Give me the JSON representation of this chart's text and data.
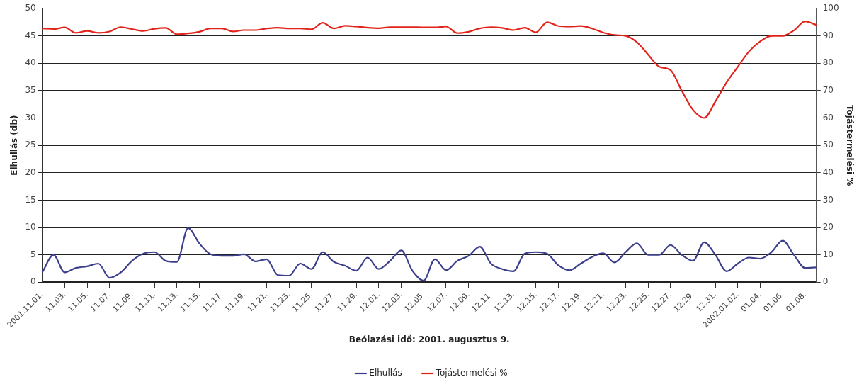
{
  "chart_data": {
    "type": "line",
    "xlabel": "Beólazási idő: 2001. augusztus 9.",
    "ylabel": "Elhullás (db)",
    "y2label": "Tojástermelési %",
    "categories": [
      "2001.11.01.",
      null,
      "11.03.",
      null,
      "11.05.",
      null,
      "11.07.",
      null,
      "11.09.",
      null,
      "11.11.",
      null,
      "11.13.",
      null,
      "11.15.",
      null,
      "11.17.",
      null,
      "11.19.",
      null,
      "11.21.",
      null,
      "11.23.",
      null,
      "11.25.",
      null,
      "11.27.",
      null,
      "11.29.",
      null,
      "12.01.",
      null,
      "12.03.",
      null,
      "12.05.",
      null,
      "12.07.",
      null,
      "12.09.",
      null,
      "12.11.",
      null,
      "12.13.",
      null,
      "12.15.",
      null,
      "12.17.",
      null,
      "12.19.",
      null,
      "12.21.",
      null,
      "12.23.",
      null,
      "12.25.",
      null,
      "12.27.",
      null,
      "12.29.",
      null,
      "12.31.",
      null,
      "2002.01.02.",
      null,
      "01.04.",
      null,
      "01.06.",
      null,
      "01.08.",
      null
    ],
    "series": [
      {
        "name": "Elhullás",
        "color": "#3c3f8c",
        "values": [
          1.8,
          5,
          1.8,
          2.6,
          2.9,
          3.4,
          0.8,
          1.8,
          3.9,
          5.2,
          5.5,
          3.9,
          3.7,
          9.9,
          7.1,
          5.1,
          4.8,
          4.8,
          5.1,
          3.8,
          4.2,
          1.3,
          1.2,
          3.4,
          2.4,
          5.5,
          3.7,
          3,
          2.1,
          4.5,
          2.4,
          3.9,
          5.8,
          2.1,
          0.3,
          4.2,
          2.2,
          3.9,
          4.8,
          6.5,
          3.4,
          2.4,
          2,
          5.2,
          5.5,
          5.2,
          3.1,
          2.2,
          3.4,
          4.6,
          5.3,
          3.6,
          5.5,
          7.1,
          5,
          5,
          6.8,
          5,
          3.9,
          7.3,
          5,
          2,
          3.4,
          4.5,
          4.3,
          5.5,
          7.6,
          5,
          2.6,
          2.7
        ]
      },
      {
        "name": "Tojástermelési %",
        "color": "#e2231a",
        "axis": "y2",
        "values": [
          92.7,
          92.5,
          93.1,
          91.1,
          91.8,
          91.1,
          91.6,
          93.2,
          92.5,
          91.8,
          92.6,
          92.9,
          90.6,
          90.9,
          91.5,
          92.7,
          92.7,
          91.6,
          92.1,
          92.1,
          92.7,
          93,
          92.7,
          92.7,
          92.4,
          94.8,
          92.7,
          93.7,
          93.4,
          93,
          92.8,
          93.2,
          93.2,
          93.2,
          93.1,
          93.1,
          93.4,
          91,
          91.5,
          92.7,
          93.2,
          92.9,
          92.1,
          93,
          91.3,
          95,
          93.6,
          93.4,
          93.6,
          92.7,
          91.2,
          90.3,
          90,
          87.7,
          83.2,
          78.7,
          77.5,
          70,
          63,
          60,
          66,
          73,
          78.7,
          84.3,
          88,
          90,
          90,
          92,
          95.3,
          94
        ]
      }
    ],
    "ylim": [
      0,
      50
    ],
    "yticks": [
      0,
      5,
      10,
      15,
      20,
      25,
      30,
      35,
      40,
      45,
      50
    ],
    "y2lim": [
      0,
      100
    ],
    "y2ticks": [
      0,
      10,
      20,
      30,
      40,
      50,
      60,
      70,
      80,
      90,
      100
    ],
    "grid": "y",
    "legend": "bottom",
    "marker": "none",
    "line_style": "solid"
  }
}
